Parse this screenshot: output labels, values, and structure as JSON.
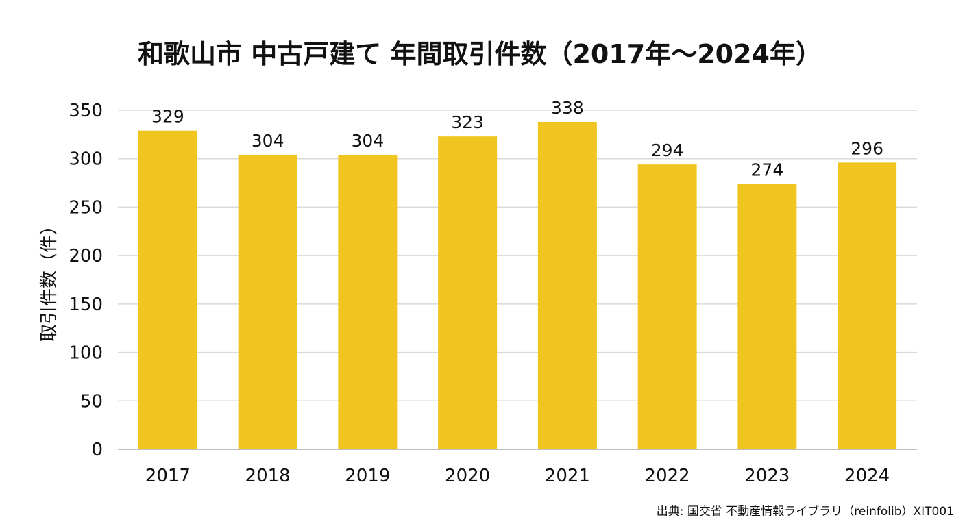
{
  "chart_data": {
    "type": "bar",
    "title": "和歌山市 中古戸建て 年間取引件数（2017年〜2024年）",
    "xlabel": "",
    "ylabel": "取引件数（件）",
    "categories": [
      "2017",
      "2018",
      "2019",
      "2020",
      "2021",
      "2022",
      "2023",
      "2024"
    ],
    "values": [
      329,
      304,
      304,
      323,
      338,
      294,
      274,
      296
    ],
    "ylim": [
      0,
      350
    ],
    "yticks": [
      0,
      50,
      100,
      150,
      200,
      250,
      300,
      350
    ],
    "grid": true,
    "legend": "none",
    "data_labels": true,
    "bar_color": "#f0c51f",
    "source": "出典: 国交省 不動産情報ライブラリ（reinfolib）XIT001"
  }
}
